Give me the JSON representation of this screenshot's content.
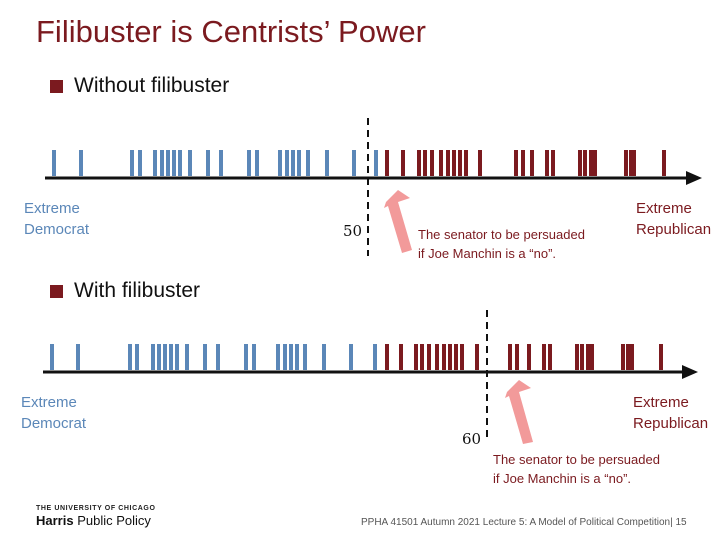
{
  "title": "Filibuster is Centrists’ Power",
  "colors": {
    "democrat": "#5b87b8",
    "republican": "#7b1a1f",
    "arrow": "#f29a9a"
  },
  "endpoint_labels": {
    "left": [
      "Extreme",
      "Democrat"
    ],
    "right": [
      "Extreme",
      "Republican"
    ]
  },
  "panels": [
    {
      "heading": "Without filibuster",
      "threshold": "50",
      "note": [
        "The senator to be persuaded",
        "if Joe Manchin is a “no”."
      ]
    },
    {
      "heading": "With filibuster",
      "threshold": "60",
      "note": [
        "The senator to be persuaded",
        "if Joe Manchin is a “no”."
      ]
    }
  ],
  "logo": {
    "line1": "THE UNIVERSITY OF CHICAGO",
    "line2_bold": "Harris",
    "line2_rest": " Public Policy"
  },
  "footer": "PPHA 41501 Autumn 2021 Lecture 5: A Model of Political Competition| 15"
}
